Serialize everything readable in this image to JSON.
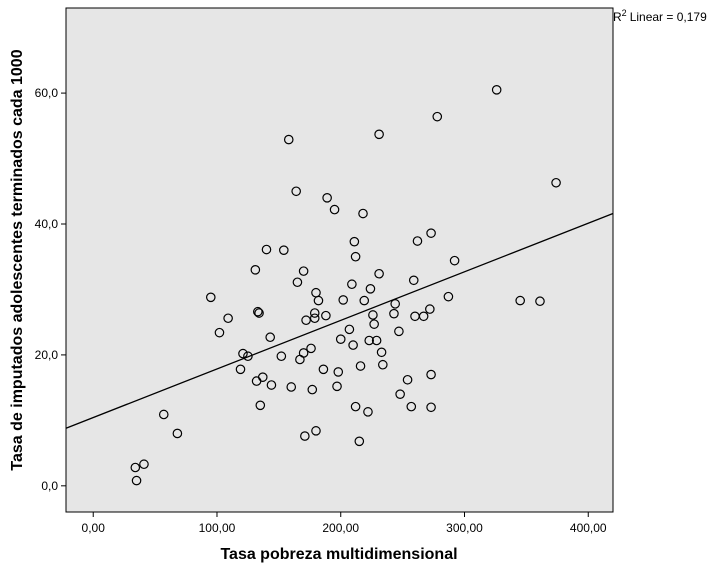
{
  "chart_data": {
    "type": "scatter",
    "title": "",
    "xlabel": "Tasa pobreza multidimensional",
    "ylabel": "Tasa de imputados adolescentes terminados cada 1000",
    "xlim": [
      -22,
      420
    ],
    "ylim": [
      -4,
      73
    ],
    "x_ticks": [
      {
        "value": 0,
        "label": "0,00"
      },
      {
        "value": 100,
        "label": "100,00"
      },
      {
        "value": 200,
        "label": "200,00"
      },
      {
        "value": 300,
        "label": "300,00"
      },
      {
        "value": 400,
        "label": "400,00"
      }
    ],
    "y_ticks": [
      {
        "value": 0,
        "label": "0,0"
      },
      {
        "value": 20,
        "label": "20,0"
      },
      {
        "value": 40,
        "label": "40,0"
      },
      {
        "value": 60,
        "label": "60,0"
      }
    ],
    "fit_line": {
      "type": "linear",
      "r2_label": "Linear = 0,179",
      "r2_prefix": "R",
      "r2_sup": "2",
      "x0": -22,
      "y0": 8.8,
      "x1": 420,
      "y1": 41.6
    },
    "grid": false,
    "background": "#e6e6e6",
    "points": [
      {
        "x": 34,
        "y": 2.8
      },
      {
        "x": 35,
        "y": 0.8
      },
      {
        "x": 41,
        "y": 3.3
      },
      {
        "x": 57,
        "y": 10.9
      },
      {
        "x": 68,
        "y": 8.0
      },
      {
        "x": 95,
        "y": 28.8
      },
      {
        "x": 102,
        "y": 23.4
      },
      {
        "x": 109,
        "y": 25.6
      },
      {
        "x": 119,
        "y": 17.8
      },
      {
        "x": 121,
        "y": 20.2
      },
      {
        "x": 125,
        "y": 19.8
      },
      {
        "x": 131,
        "y": 33.0
      },
      {
        "x": 132,
        "y": 16.0
      },
      {
        "x": 133,
        "y": 26.6
      },
      {
        "x": 134,
        "y": 26.4
      },
      {
        "x": 135,
        "y": 12.3
      },
      {
        "x": 137,
        "y": 16.6
      },
      {
        "x": 140,
        "y": 36.1
      },
      {
        "x": 143,
        "y": 22.7
      },
      {
        "x": 144,
        "y": 15.4
      },
      {
        "x": 152,
        "y": 19.8
      },
      {
        "x": 154,
        "y": 36.0
      },
      {
        "x": 158,
        "y": 52.9
      },
      {
        "x": 160,
        "y": 15.1
      },
      {
        "x": 164,
        "y": 45.0
      },
      {
        "x": 165,
        "y": 31.1
      },
      {
        "x": 167,
        "y": 19.3
      },
      {
        "x": 170,
        "y": 32.8
      },
      {
        "x": 170,
        "y": 20.3
      },
      {
        "x": 171,
        "y": 7.6
      },
      {
        "x": 172,
        "y": 25.3
      },
      {
        "x": 176,
        "y": 21.0
      },
      {
        "x": 177,
        "y": 14.7
      },
      {
        "x": 179,
        "y": 26.4
      },
      {
        "x": 179,
        "y": 25.6
      },
      {
        "x": 180,
        "y": 8.4
      },
      {
        "x": 180,
        "y": 29.5
      },
      {
        "x": 182,
        "y": 28.3
      },
      {
        "x": 186,
        "y": 17.8
      },
      {
        "x": 188,
        "y": 26.0
      },
      {
        "x": 189,
        "y": 44.0
      },
      {
        "x": 195,
        "y": 42.2
      },
      {
        "x": 197,
        "y": 15.2
      },
      {
        "x": 198,
        "y": 17.4
      },
      {
        "x": 200,
        "y": 22.4
      },
      {
        "x": 202,
        "y": 28.4
      },
      {
        "x": 207,
        "y": 23.9
      },
      {
        "x": 209,
        "y": 30.8
      },
      {
        "x": 210,
        "y": 21.5
      },
      {
        "x": 211,
        "y": 37.3
      },
      {
        "x": 212,
        "y": 35.0
      },
      {
        "x": 212,
        "y": 12.1
      },
      {
        "x": 215,
        "y": 6.8
      },
      {
        "x": 216,
        "y": 18.3
      },
      {
        "x": 218,
        "y": 41.6
      },
      {
        "x": 219,
        "y": 28.3
      },
      {
        "x": 222,
        "y": 11.3
      },
      {
        "x": 223,
        "y": 22.2
      },
      {
        "x": 224,
        "y": 30.1
      },
      {
        "x": 226,
        "y": 26.1
      },
      {
        "x": 227,
        "y": 24.7
      },
      {
        "x": 229,
        "y": 22.2
      },
      {
        "x": 231,
        "y": 53.7
      },
      {
        "x": 231,
        "y": 32.4
      },
      {
        "x": 233,
        "y": 20.4
      },
      {
        "x": 234,
        "y": 18.5
      },
      {
        "x": 243,
        "y": 26.3
      },
      {
        "x": 244,
        "y": 27.8
      },
      {
        "x": 247,
        "y": 23.6
      },
      {
        "x": 248,
        "y": 14.0
      },
      {
        "x": 254,
        "y": 16.2
      },
      {
        "x": 257,
        "y": 12.1
      },
      {
        "x": 259,
        "y": 31.4
      },
      {
        "x": 260,
        "y": 25.9
      },
      {
        "x": 262,
        "y": 37.4
      },
      {
        "x": 267,
        "y": 25.9
      },
      {
        "x": 272,
        "y": 27.0
      },
      {
        "x": 273,
        "y": 38.6
      },
      {
        "x": 273,
        "y": 17.0
      },
      {
        "x": 273,
        "y": 12.0
      },
      {
        "x": 278,
        "y": 56.4
      },
      {
        "x": 287,
        "y": 28.9
      },
      {
        "x": 292,
        "y": 34.4
      },
      {
        "x": 326,
        "y": 60.5
      },
      {
        "x": 345,
        "y": 28.3
      },
      {
        "x": 361,
        "y": 28.2
      },
      {
        "x": 374,
        "y": 46.3
      }
    ]
  }
}
